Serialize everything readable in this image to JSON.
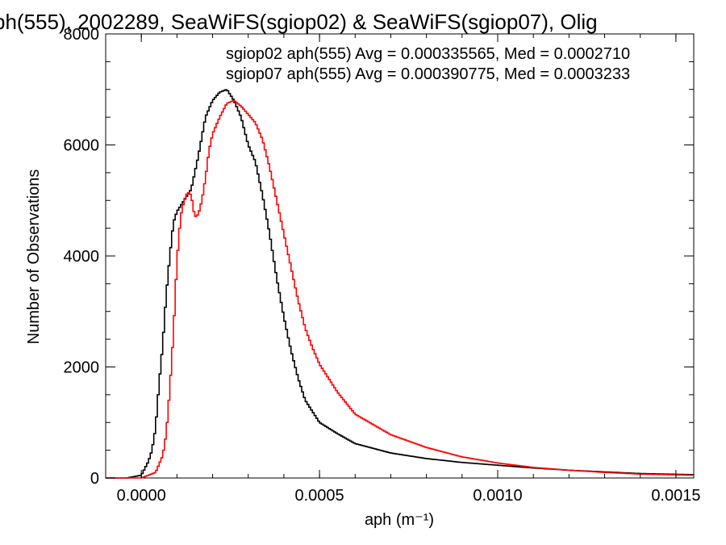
{
  "chart_data": {
    "type": "line",
    "title": "ph(555), 2002289, SeaWiFS(sgiop02) & SeaWiFS(sgiop07), Olig",
    "xlabel": "aph (m⁻¹)",
    "ylabel": "Number of Observations",
    "xlim": [
      -0.0001,
      0.00155
    ],
    "ylim": [
      0,
      8000
    ],
    "xticks": [
      0.0,
      0.0005,
      0.001,
      0.0015
    ],
    "xtick_labels": [
      "0.0000",
      "0.0005",
      "0.0010",
      "0.0015"
    ],
    "yticks": [
      0,
      2000,
      4000,
      6000,
      8000
    ],
    "ytick_labels": [
      "0",
      "2000",
      "4000",
      "6000",
      "8000"
    ],
    "grid": false,
    "series": [
      {
        "name": "sgiop02 aph(555) Avg = 0.000335565, Med = 0.0002710",
        "color": "#000000",
        "points": [
          [
            -0.0001,
            0
          ],
          [
            -4e-05,
            0
          ],
          [
            0.0,
            50
          ],
          [
            2e-05,
            300
          ],
          [
            3e-05,
            500
          ],
          [
            4e-05,
            900
          ],
          [
            5e-05,
            1700
          ],
          [
            6e-05,
            2400
          ],
          [
            7e-05,
            3300
          ],
          [
            8e-05,
            4000
          ],
          [
            9e-05,
            4600
          ],
          [
            0.0001,
            4800
          ],
          [
            0.00012,
            5000
          ],
          [
            0.00014,
            5200
          ],
          [
            0.00016,
            5800
          ],
          [
            0.00018,
            6500
          ],
          [
            0.0002,
            6800
          ],
          [
            0.00022,
            6950
          ],
          [
            0.00024,
            7000
          ],
          [
            0.00026,
            6800
          ],
          [
            0.00028,
            6500
          ],
          [
            0.0003,
            6000
          ],
          [
            0.00032,
            5700
          ],
          [
            0.00034,
            5100
          ],
          [
            0.00036,
            4400
          ],
          [
            0.00038,
            3600
          ],
          [
            0.0004,
            2900
          ],
          [
            0.00042,
            2300
          ],
          [
            0.00044,
            1800
          ],
          [
            0.00046,
            1400
          ],
          [
            0.0005,
            1000
          ],
          [
            0.00055,
            800
          ],
          [
            0.0006,
            620
          ],
          [
            0.0007,
            450
          ],
          [
            0.0008,
            350
          ],
          [
            0.0009,
            280
          ],
          [
            0.001,
            230
          ],
          [
            0.0011,
            180
          ],
          [
            0.0012,
            140
          ],
          [
            0.0013,
            110
          ],
          [
            0.0014,
            80
          ],
          [
            0.00155,
            60
          ]
        ]
      },
      {
        "name": "sgiop07 aph(555) Avg = 0.000390775, Med = 0.0003233",
        "color": "#ff0000",
        "points": [
          [
            -0.0001,
            0
          ],
          [
            0.0,
            0
          ],
          [
            4e-05,
            100
          ],
          [
            6e-05,
            400
          ],
          [
            7e-05,
            800
          ],
          [
            8e-05,
            1600
          ],
          [
            9e-05,
            2600
          ],
          [
            0.0001,
            3900
          ],
          [
            0.00011,
            4700
          ],
          [
            0.00012,
            5000
          ],
          [
            0.00013,
            5150
          ],
          [
            0.00014,
            5100
          ],
          [
            0.00015,
            4700
          ],
          [
            0.00016,
            4750
          ],
          [
            0.00017,
            5000
          ],
          [
            0.00018,
            5400
          ],
          [
            0.00019,
            5900
          ],
          [
            0.0002,
            6200
          ],
          [
            0.00022,
            6500
          ],
          [
            0.00024,
            6750
          ],
          [
            0.00026,
            6800
          ],
          [
            0.00028,
            6700
          ],
          [
            0.0003,
            6550
          ],
          [
            0.00032,
            6400
          ],
          [
            0.00034,
            6100
          ],
          [
            0.00036,
            5600
          ],
          [
            0.00038,
            5000
          ],
          [
            0.0004,
            4400
          ],
          [
            0.00042,
            3800
          ],
          [
            0.00044,
            3200
          ],
          [
            0.00046,
            2700
          ],
          [
            0.00048,
            2350
          ],
          [
            0.0005,
            2050
          ],
          [
            0.00055,
            1550
          ],
          [
            0.0006,
            1150
          ],
          [
            0.0007,
            780
          ],
          [
            0.0008,
            550
          ],
          [
            0.0009,
            380
          ],
          [
            0.001,
            270
          ],
          [
            0.0011,
            190
          ],
          [
            0.0012,
            140
          ],
          [
            0.0013,
            100
          ],
          [
            0.0014,
            70
          ],
          [
            0.00155,
            50
          ]
        ]
      }
    ]
  }
}
